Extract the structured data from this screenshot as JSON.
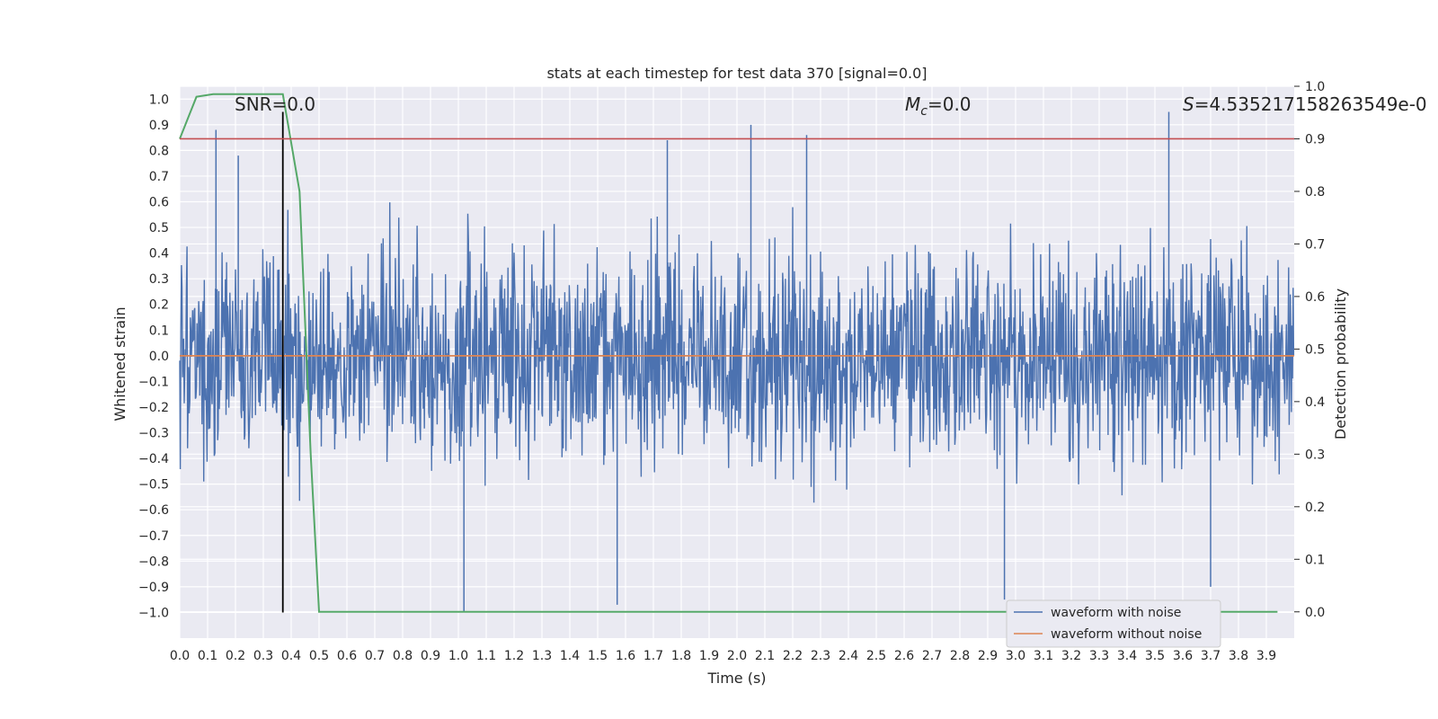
{
  "chart_data": {
    "type": "line",
    "title": "stats at each timestep for test data 370 [signal=0.0]",
    "xlabel": "Time (s)",
    "ylabel": "Whitened strain",
    "y2label": "Detection probability",
    "xlim": [
      0.0,
      4.0
    ],
    "ylim": [
      -1.1,
      1.05
    ],
    "y2lim": [
      -0.05,
      1.0
    ],
    "grid": true,
    "legend_placement": "lower-right",
    "x_ticks": [
      "0.0",
      "0.1",
      "0.2",
      "0.3",
      "0.4",
      "0.5",
      "0.6",
      "0.7",
      "0.8",
      "0.9",
      "1.0",
      "1.1",
      "1.2",
      "1.3",
      "1.4",
      "1.5",
      "1.6",
      "1.7",
      "1.8",
      "1.9",
      "2.0",
      "2.1",
      "2.2",
      "2.3",
      "2.4",
      "2.5",
      "2.6",
      "2.7",
      "2.8",
      "2.9",
      "3.0",
      "3.1",
      "3.2",
      "3.3",
      "3.4",
      "3.5",
      "3.6",
      "3.7",
      "3.8",
      "3.9"
    ],
    "y_ticks": [
      "1.0",
      "0.9",
      "0.8",
      "0.7",
      "0.6",
      "0.5",
      "0.4",
      "0.3",
      "0.2",
      "0.1",
      "0.0",
      "-0.1",
      "-0.2",
      "-0.3",
      "-0.4",
      "-0.5",
      "-0.6",
      "-0.7",
      "-0.8",
      "-0.9",
      "-1.0"
    ],
    "y2_ticks": [
      "1.0",
      "0.9",
      "0.8",
      "0.7",
      "0.6",
      "0.5",
      "0.4",
      "0.3",
      "0.2",
      "0.1",
      "0.0"
    ],
    "annotations": {
      "snr": "SNR=0.0",
      "mc_symbol": "M",
      "mc_sub": "c",
      "mc_value": "=0.0",
      "s_symbol": "S",
      "s_value": "=4.535217158263549e-0"
    },
    "series": [
      {
        "name": "waveform with noise",
        "axis": "left",
        "color": "#4c72b0",
        "note_amplitude": "noise roughly within -1.0 to 0.95",
        "peaks": [
          [
            0.13,
            0.88
          ],
          [
            0.21,
            0.78
          ],
          [
            1.02,
            -1.0
          ],
          [
            1.57,
            -0.97
          ],
          [
            1.75,
            0.84
          ],
          [
            2.05,
            0.9
          ],
          [
            2.25,
            0.86
          ],
          [
            2.96,
            -0.95
          ],
          [
            3.55,
            0.95
          ],
          [
            3.7,
            -0.9
          ]
        ]
      },
      {
        "name": "waveform without noise",
        "axis": "left",
        "color": "#dd8452",
        "x": [
          0.0,
          4.0
        ],
        "values": [
          0.0,
          0.0
        ]
      },
      {
        "axis": "right",
        "color": "#55a868",
        "x": [
          0.0,
          0.06,
          0.12,
          0.2,
          0.28,
          0.37,
          0.43,
          0.47,
          0.5,
          0.6,
          1.0,
          2.0,
          3.0,
          3.94
        ],
        "values": [
          0.9,
          0.98,
          0.985,
          0.985,
          0.985,
          0.985,
          0.8,
          0.3,
          0.0,
          0.0,
          0.0,
          0.0,
          0.0,
          0.0
        ]
      },
      {
        "axis": "right",
        "color": "#c44e52",
        "x": [
          0.0,
          4.0
        ],
        "values": [
          0.9,
          0.9
        ]
      }
    ],
    "vertical_line": {
      "x": 0.37,
      "color": "#000000",
      "ymin": -1.0,
      "ymax": 0.95
    }
  }
}
